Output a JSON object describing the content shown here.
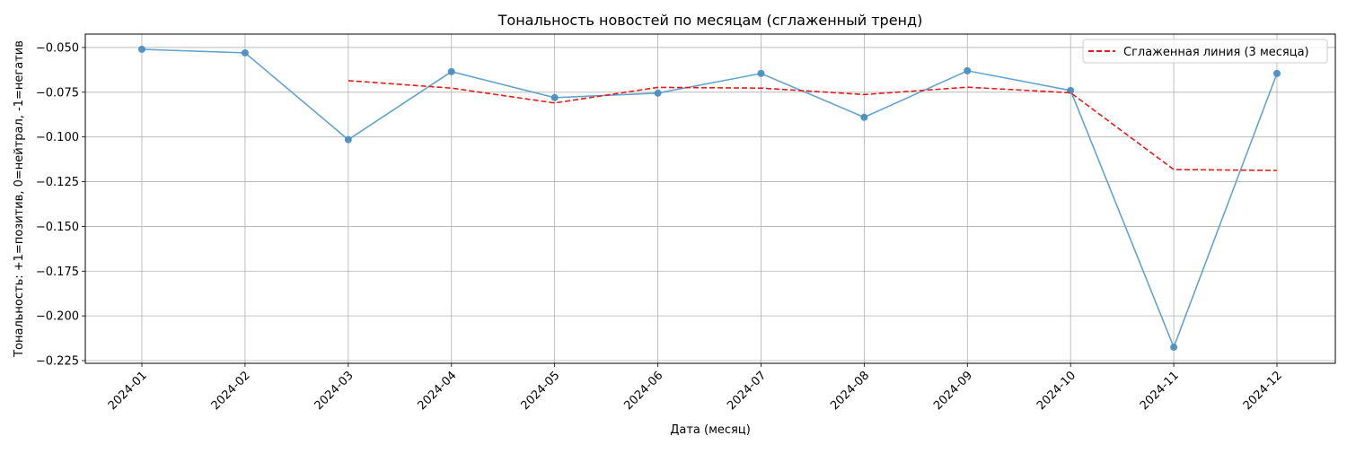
{
  "chart_data": {
    "type": "line",
    "title": "Тональность новостей по месяцам (сглаженный тренд)",
    "xlabel": "Дата (месяц)",
    "ylabel": "Тональность: +1=позитив, 0=нейтрал, -1=негатив",
    "categories": [
      "2024-01",
      "2024-02",
      "2024-03",
      "2024-04",
      "2024-05",
      "2024-06",
      "2024-07",
      "2024-08",
      "2024-09",
      "2024-10",
      "2024-11",
      "2024-12"
    ],
    "yticks": [
      -0.05,
      -0.075,
      -0.1,
      -0.125,
      -0.15,
      -0.175,
      -0.2,
      -0.225
    ],
    "ytick_labels": [
      "−0.050",
      "−0.075",
      "−0.100",
      "−0.125",
      "−0.150",
      "−0.175",
      "−0.200",
      "−0.225"
    ],
    "ylim": [
      -0.2265,
      -0.0425
    ],
    "grid": true,
    "legend_position": "top-right",
    "series": [
      {
        "style": "solid-with-markers",
        "color": "#5b9ec9",
        "values": [
          -0.051,
          -0.053,
          -0.1015,
          -0.0635,
          -0.078,
          -0.0755,
          -0.0645,
          -0.089,
          -0.063,
          -0.074,
          -0.2175,
          -0.0645
        ]
      },
      {
        "name": "Сглаженная линия (3 месяца)",
        "style": "dashed",
        "color": "#e8191b",
        "values": [
          null,
          null,
          -0.0685,
          -0.0727,
          -0.081,
          -0.0723,
          -0.0727,
          -0.0763,
          -0.0722,
          -0.0753,
          -0.1182,
          -0.1187
        ]
      }
    ]
  }
}
